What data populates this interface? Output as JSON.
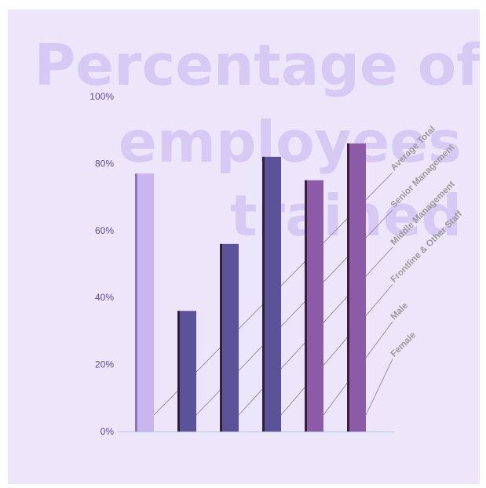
{
  "chart_data": {
    "type": "bar",
    "title": [
      "Percentage of",
      "employees",
      "trained"
    ],
    "categories": [
      "Average Total",
      "Senior Management",
      "Middle Management",
      "Frontline & Other Staff",
      "Male",
      "Female"
    ],
    "values": [
      77,
      36,
      56,
      82,
      75,
      86
    ],
    "y_ticks": [
      "0%",
      "20%",
      "40%",
      "60%",
      "80%",
      "100%"
    ],
    "ylim": [
      0,
      100
    ],
    "xlabel": "",
    "ylabel": "",
    "grid": false,
    "colors": {
      "bar_fills": [
        "#c9b6ef",
        "#5c5297",
        "#5c5297",
        "#5c5297",
        "#8b5ba8",
        "#8b5ba8"
      ],
      "bar_shadows": [
        "#8e75c8",
        "#2e1f3a",
        "#2e1f3a",
        "#2e1f3a",
        "#3a1f3a",
        "#3a1f3a"
      ],
      "title": "#d6c9f4",
      "axis": "#b9c3e6",
      "leader": "#7e7ea0",
      "label": "#9b9b9b",
      "tick": "#5b4d9b",
      "background": "#ede6fb"
    }
  }
}
